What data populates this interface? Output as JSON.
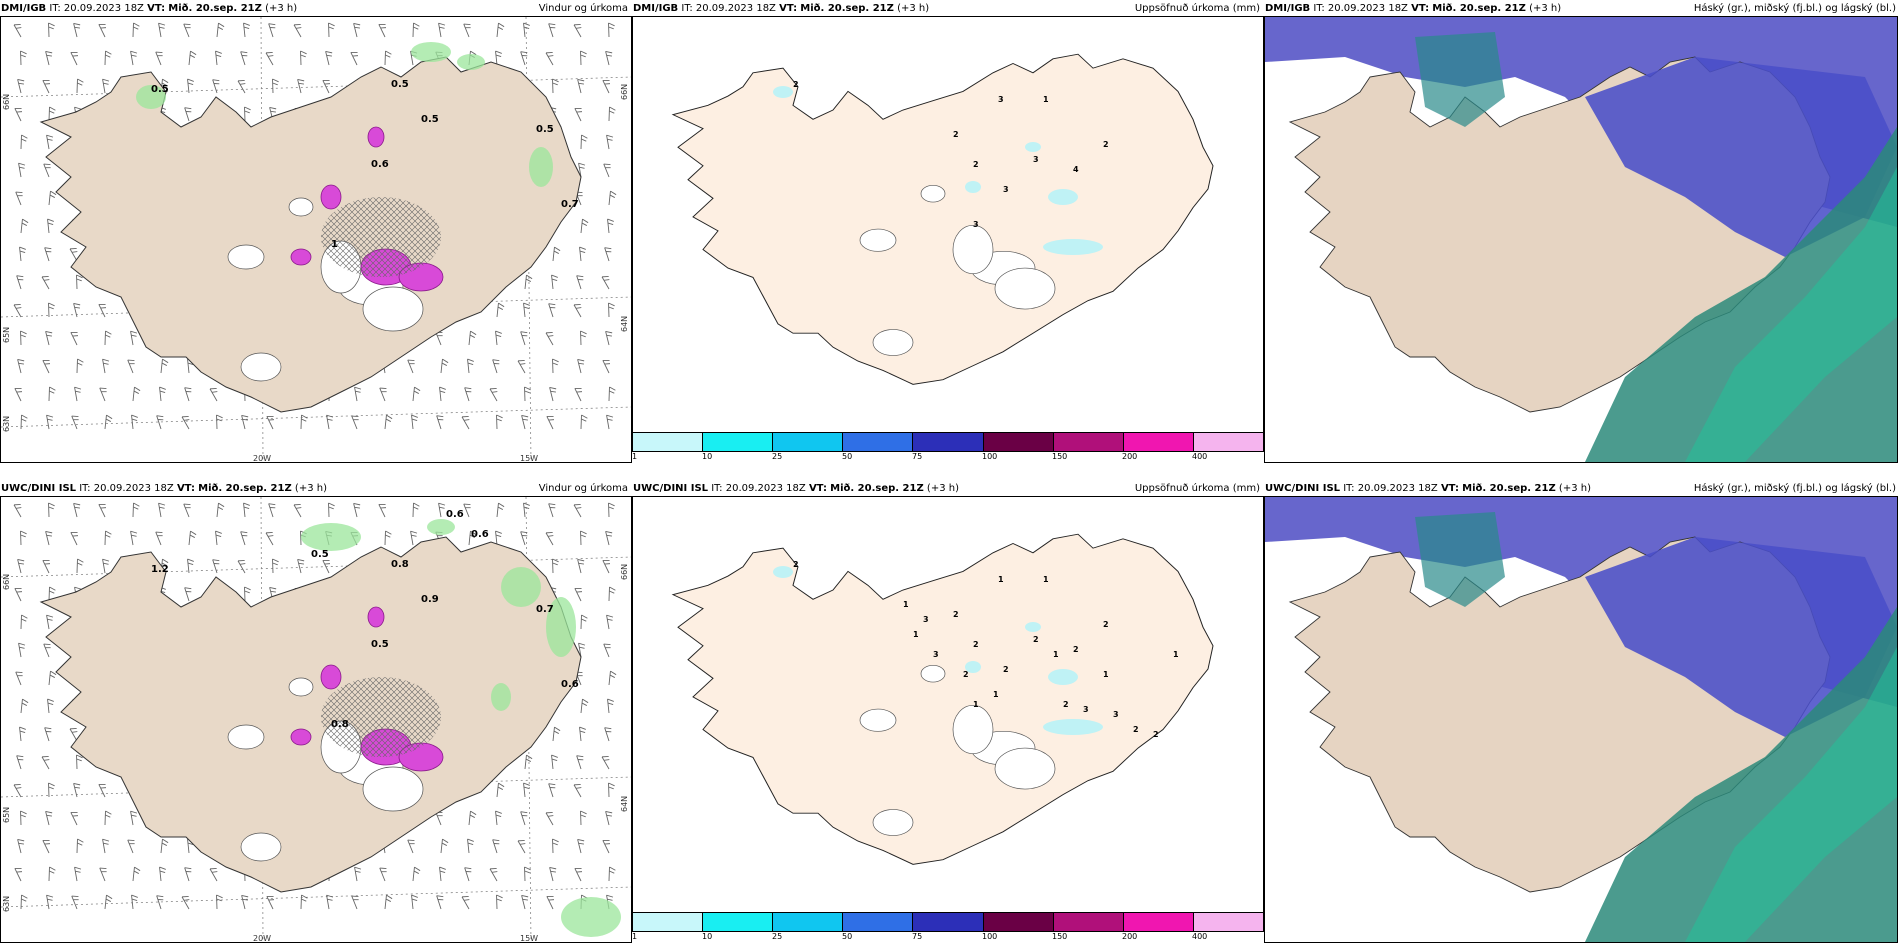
{
  "rows": [
    {
      "model": "DMI/IGB",
      "it_label": "IT:",
      "it_value": "20.09.2023 18Z",
      "vt_label": "VT:",
      "vt_value": "Mið. 20.sep. 21Z",
      "lead": "(+3 h)",
      "titles": [
        "Vindur og úrkoma",
        "Uppsöfnuð úrkoma (mm)",
        "Háský (gr.), miðský (fj.bl.) og lágský (bl.)"
      ]
    },
    {
      "model": "UWC/DINI ISL",
      "it_label": "IT:",
      "it_value": "20.09.2023 18Z",
      "vt_label": "VT:",
      "vt_value": "Mið. 20.sep. 21Z",
      "lead": "(+3 h)",
      "titles": [
        "Vindur og úrkoma",
        "Uppsöfnuð úrkoma (mm)",
        "Háský (gr.), miðský (fj.bl.) og lágský (bl.)"
      ]
    }
  ],
  "axis_labels": {
    "lat": [
      "66N",
      "65N",
      "64N",
      "63N"
    ],
    "lon": [
      "20W",
      "15W"
    ]
  },
  "precip_labels_row1": [
    "0.5",
    "0.5",
    "0.5",
    "0.7",
    "0.6",
    "1",
    "0.5"
  ],
  "precip_labels_row2": [
    "0.8",
    "0.9",
    "0.7",
    "0.6",
    "0.5",
    "0.8",
    "1.2",
    "0.6",
    "0.5",
    "0.6"
  ],
  "accum_labels_row1": [
    "2",
    "3",
    "1",
    "3",
    "4",
    "3",
    "3",
    "2",
    "2",
    "2"
  ],
  "accum_labels_row2": [
    "2",
    "1",
    "1",
    "2",
    "2",
    "2",
    "1",
    "2",
    "2",
    "2",
    "1",
    "3",
    "1",
    "3",
    "2",
    "1",
    "1",
    "2",
    "3",
    "1",
    "3",
    "2",
    "2",
    "1"
  ],
  "colorbar": {
    "ticks": [
      "1",
      "10",
      "25",
      "50",
      "75",
      "100",
      "150",
      "200",
      "400"
    ],
    "colors": [
      "#c8f7fa",
      "#19eef2",
      "#10c6f0",
      "#2f6fe6",
      "#2c2fb8",
      "#6a0045",
      "#b0107a",
      "#f016b0",
      "#f5b4ee"
    ]
  }
}
